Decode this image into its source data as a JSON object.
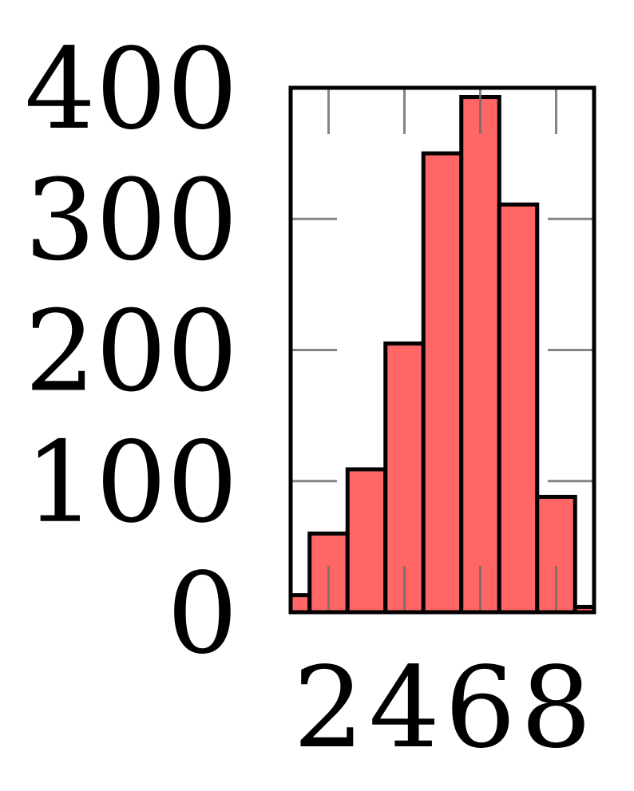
{
  "chart_data": {
    "type": "histogram",
    "bins": [
      0.5,
      1.5,
      2.5,
      3.5,
      4.5,
      5.5,
      6.5,
      7.5,
      8.5,
      9.5
    ],
    "values": [
      13,
      60,
      109,
      205,
      350,
      393,
      311,
      88,
      4
    ],
    "color": "#ff6666",
    "xlim": [
      1,
      9
    ],
    "xticks": [
      2,
      4,
      6,
      8
    ],
    "ylim": [
      0,
      400
    ],
    "yticks": [
      0,
      100,
      200,
      300,
      400
    ]
  }
}
